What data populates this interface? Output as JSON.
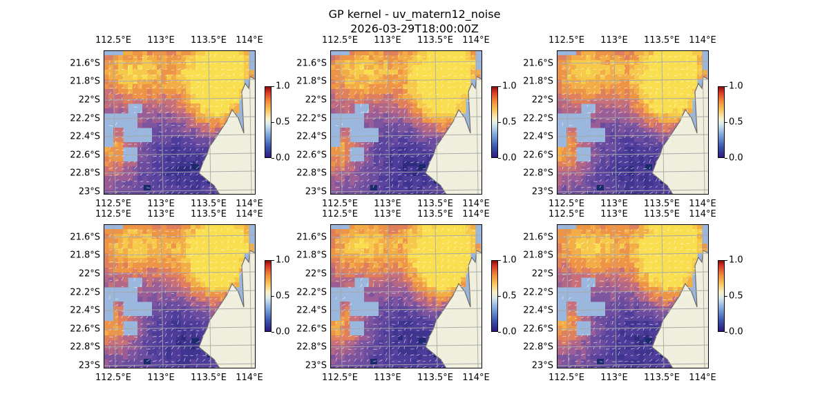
{
  "figure": {
    "title_line1": "GP kernel - uv_matern12_noise",
    "title_line2": "2026-03-29T18:00:00Z"
  },
  "axes": {
    "x_ticks": [
      "112.5°E",
      "113°E",
      "113.5°E",
      "114°E"
    ],
    "y_ticks": [
      "21.6°S",
      "21.8°S",
      "22°S",
      "22.2°S",
      "22.4°S",
      "22.6°S",
      "22.8°S",
      "23°S"
    ]
  },
  "colorbar": {
    "ticks": [
      "0.0",
      "0.5",
      "1.0"
    ],
    "range": [
      0.0,
      1.0
    ],
    "colormap": "RdYlBu_r"
  },
  "map": {
    "lon_range": [
      112.4,
      114.2
    ],
    "lat_range": [
      -23.0,
      -21.47
    ],
    "panel_count": 6,
    "land_color": "#f0efdd",
    "ocean_color": "#9bb7de",
    "coastline_color": "#6a6a6a"
  }
}
